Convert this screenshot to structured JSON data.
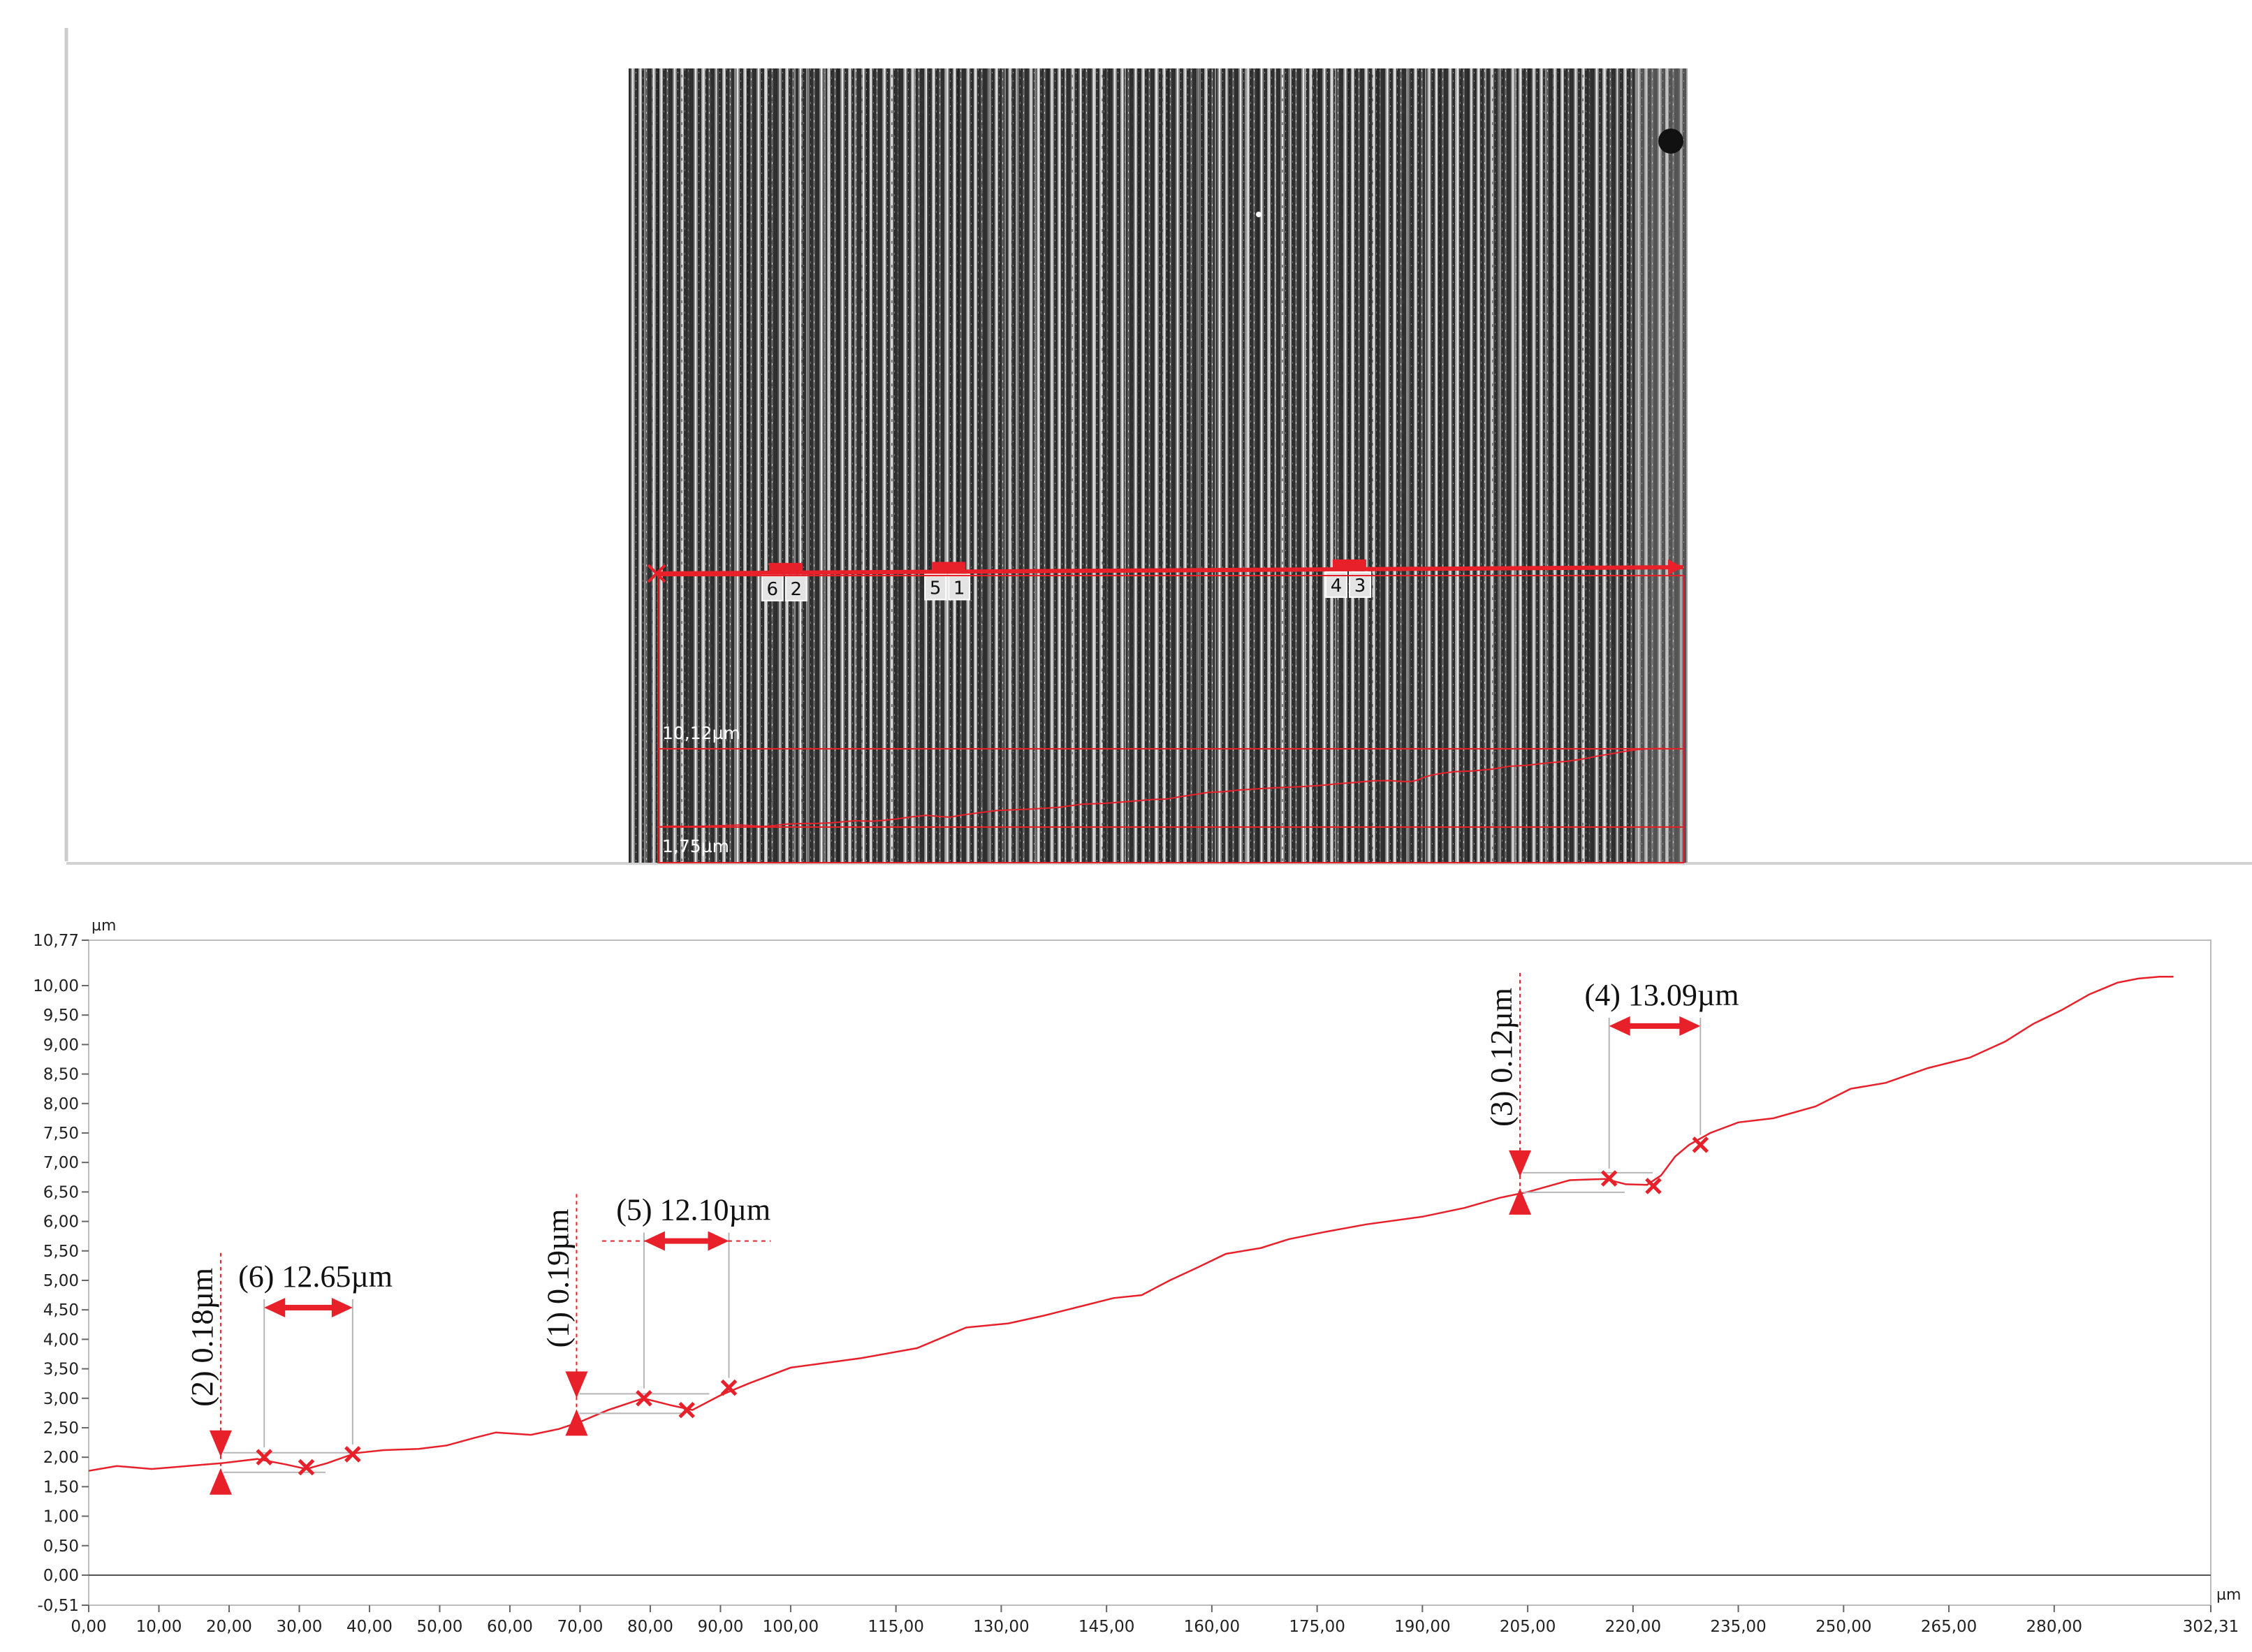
{
  "image_panel": {
    "scale_top": "10,12µm",
    "scale_bottom": "1,75µm",
    "markers": [
      {
        "pair": [
          "6",
          "2"
        ],
        "x_um": 38.0
      },
      {
        "pair": [
          "5",
          "1"
        ],
        "x_um": 86.0
      },
      {
        "pair": [
          "4",
          "3"
        ],
        "x_um": 204.0
      }
    ]
  },
  "chart_data": {
    "type": "line",
    "x_unit": "µm",
    "y_unit": "µm",
    "xlim": [
      0.0,
      302.31
    ],
    "ylim": [
      -0.51,
      10.77
    ],
    "x_tick_labels": [
      "0,00",
      "10,00",
      "20,00",
      "30,00",
      "40,00",
      "50,00",
      "60,00",
      "70,00",
      "80,00",
      "90,00",
      "100,00",
      "115,00",
      "130,00",
      "145,00",
      "160,00",
      "175,00",
      "190,00",
      "205,00",
      "220,00",
      "235,00",
      "250,00",
      "265,00",
      "280,00",
      "302,31"
    ],
    "y_tick_labels": [
      "-0,51",
      "0,00",
      "0,50",
      "1,00",
      "1,50",
      "2,00",
      "2,50",
      "3,00",
      "3,50",
      "4,00",
      "4,50",
      "5,00",
      "5,50",
      "6,00",
      "6,50",
      "7,00",
      "7,50",
      "8,00",
      "8,50",
      "9,00",
      "9,50",
      "10,00",
      "10,77"
    ],
    "series": [
      {
        "color": "#e8202a",
        "x": [
          0,
          4,
          9,
          14,
          19,
          24,
          28,
          31,
          34,
          38,
          42,
          47,
          51,
          55,
          58,
          63,
          67,
          70,
          74,
          79,
          83,
          86,
          90,
          94,
          100,
          110,
          118,
          125,
          131,
          136,
          141,
          146,
          150,
          154,
          158,
          162,
          167,
          171,
          176,
          182,
          190,
          196,
          201,
          205,
          211,
          216,
          219,
          222,
          224,
          226,
          228,
          231,
          235,
          240,
          246,
          251,
          256,
          262,
          268,
          273,
          277,
          281,
          285,
          289,
          292,
          295,
          297
        ],
        "y": [
          1.77,
          1.85,
          1.8,
          1.85,
          1.9,
          1.97,
          1.88,
          1.8,
          1.9,
          2.07,
          2.12,
          2.14,
          2.2,
          2.33,
          2.42,
          2.38,
          2.48,
          2.6,
          2.8,
          3.0,
          2.88,
          2.8,
          3.05,
          3.25,
          3.52,
          3.68,
          3.85,
          4.2,
          4.27,
          4.4,
          4.55,
          4.7,
          4.75,
          5.0,
          5.22,
          5.45,
          5.55,
          5.7,
          5.82,
          5.95,
          6.08,
          6.23,
          6.4,
          6.5,
          6.7,
          6.72,
          6.63,
          6.62,
          6.78,
          7.1,
          7.3,
          7.5,
          7.68,
          7.75,
          7.95,
          8.25,
          8.35,
          8.6,
          8.78,
          9.05,
          9.35,
          9.58,
          9.85,
          10.05,
          10.12,
          10.15,
          10.15
        ]
      }
    ],
    "points": [
      {
        "x": 25.0,
        "y": 2.0
      },
      {
        "x": 31.0,
        "y": 1.83
      },
      {
        "x": 37.6,
        "y": 2.05
      },
      {
        "x": 79.1,
        "y": 3.0
      },
      {
        "x": 85.2,
        "y": 2.8
      },
      {
        "x": 91.2,
        "y": 3.18
      },
      {
        "x": 216.6,
        "y": 6.73
      },
      {
        "x": 222.9,
        "y": 6.6
      },
      {
        "x": 229.6,
        "y": 7.3
      }
    ],
    "annotations": {
      "height": [
        {
          "label": "(2) 0.18µm",
          "x": 18.8,
          "y_low": 1.82,
          "y_high": 2.0
        },
        {
          "label": "(1) 0.19µm",
          "x": 69.5,
          "y_low": 2.82,
          "y_high": 3.0
        },
        {
          "label": "(3) 0.12µm",
          "x": 203.9,
          "y_low": 6.6,
          "y_high": 6.72
        }
      ],
      "width": [
        {
          "label": "(6) 12.65µm",
          "x1": 25.0,
          "x2": 37.6,
          "y_point1": 2.0,
          "y_point2": 2.05
        },
        {
          "label": "(5) 12.10µm",
          "x1": 79.1,
          "x2": 91.2,
          "y_point1": 3.0,
          "y_point2": 3.18
        },
        {
          "label": "(4) 13.09µm",
          "x1": 216.6,
          "x2": 229.6,
          "y_point1": 6.73,
          "y_point2": 7.3
        }
      ]
    }
  }
}
